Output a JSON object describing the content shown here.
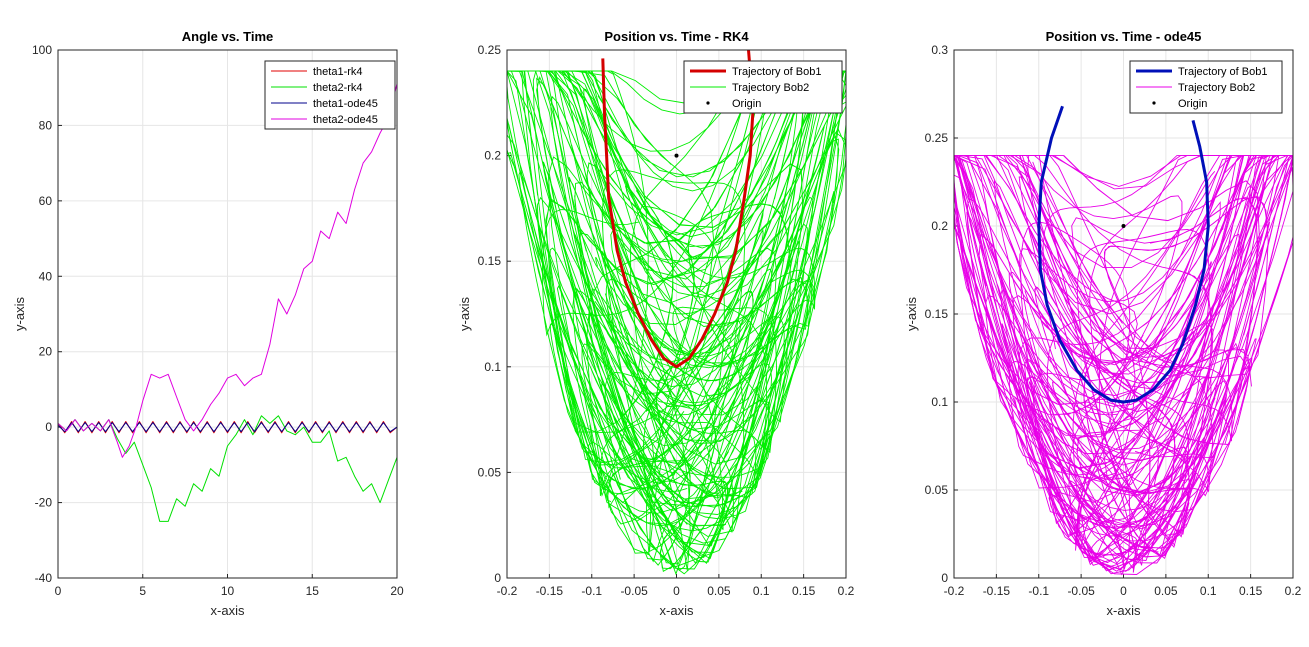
{
  "chart_data": [
    {
      "type": "line",
      "title": "Angle vs. Time",
      "xlabel": "x-axis",
      "ylabel": "y-axis",
      "xlim": [
        0,
        20
      ],
      "ylim": [
        -40,
        100
      ],
      "xticks": [
        "0",
        "5",
        "10",
        "15",
        "20"
      ],
      "yticks": [
        "-40",
        "-20",
        "0",
        "20",
        "40",
        "60",
        "80",
        "100"
      ],
      "grid": true,
      "legend_position": "top-right",
      "series": [
        {
          "name": "theta1-rk4",
          "color": "#e00000",
          "x": [
            0,
            0.4,
            0.8,
            1.2,
            1.6,
            2.0,
            2.4,
            2.8,
            3.2,
            3.6,
            4.0,
            4.4,
            4.8,
            5.2,
            5.6,
            6.0,
            6.4,
            6.8,
            7.2,
            7.6,
            8.0,
            8.4,
            8.8,
            9.2,
            9.6,
            10.0,
            10.4,
            10.8,
            11.2,
            11.6,
            12.0,
            12.4,
            12.8,
            13.2,
            13.6,
            14.0,
            14.4,
            14.8,
            15.2,
            15.6,
            16.0,
            16.4,
            16.8,
            17.2,
            17.6,
            18.0,
            18.4,
            18.8,
            19.2,
            19.6,
            20.0
          ],
          "y": [
            1,
            -1.5,
            1.5,
            -1.5,
            1.5,
            -1.5,
            1.5,
            -1.5,
            1.5,
            -1.5,
            1.5,
            -1.5,
            1.5,
            -1.5,
            1.5,
            -1.5,
            1.5,
            -1.5,
            1.5,
            -1.5,
            1.5,
            -1.5,
            1.5,
            -1.5,
            1.5,
            -1.5,
            1.5,
            -1.5,
            1.5,
            -1.5,
            1.5,
            -1.5,
            1.5,
            -1.5,
            1.5,
            -1.5,
            1.5,
            -1.5,
            1.5,
            -1.5,
            1.5,
            -1.5,
            1.5,
            -1.5,
            1.5,
            -1.5,
            1.5,
            -1.5,
            1.5,
            -1.5,
            0
          ]
        },
        {
          "name": "theta2-rk4",
          "color": "#00e000",
          "x": [
            0,
            0.5,
            1.0,
            1.5,
            2.0,
            2.5,
            3.0,
            3.5,
            4.0,
            4.5,
            5.0,
            5.5,
            6.0,
            6.5,
            7.0,
            7.5,
            8.0,
            8.5,
            9.0,
            9.5,
            10.0,
            10.5,
            11.0,
            11.5,
            12.0,
            12.5,
            13.0,
            13.5,
            14.0,
            14.5,
            15.0,
            15.5,
            16.0,
            16.5,
            17.0,
            17.5,
            18.0,
            18.5,
            19.0,
            19.5,
            20.0
          ],
          "y": [
            1,
            -1,
            2,
            -1,
            1,
            -1,
            2,
            -3,
            -7,
            -4,
            -10,
            -16,
            -25,
            -25,
            -19,
            -21,
            -15,
            -17,
            -11,
            -13,
            -5,
            -2,
            2,
            -2,
            3,
            1,
            3,
            -1,
            -2,
            0,
            -4,
            -4,
            -1,
            -9,
            -8,
            -13,
            -17,
            -15,
            -20,
            -14,
            -8
          ]
        },
        {
          "name": "theta1-ode45",
          "color": "#00008b",
          "x": [
            0,
            0.4,
            0.8,
            1.2,
            1.6,
            2.0,
            2.4,
            2.8,
            3.2,
            3.6,
            4.0,
            4.4,
            4.8,
            5.2,
            5.6,
            6.0,
            6.4,
            6.8,
            7.2,
            7.6,
            8.0,
            8.4,
            8.8,
            9.2,
            9.6,
            10.0,
            10.4,
            10.8,
            11.2,
            11.6,
            12.0,
            12.4,
            12.8,
            13.2,
            13.6,
            14.0,
            14.4,
            14.8,
            15.2,
            15.6,
            16.0,
            16.4,
            16.8,
            17.2,
            17.6,
            18.0,
            18.4,
            18.8,
            19.2,
            19.6,
            20.0
          ],
          "y": [
            0.5,
            -1.2,
            1.2,
            -1.2,
            1.2,
            -1.2,
            1.2,
            -1.2,
            1.2,
            -1.2,
            1.2,
            -1.2,
            1.2,
            -1.2,
            1.2,
            -1.2,
            1.2,
            -1.2,
            1.2,
            -1.2,
            1.2,
            -1.2,
            1.2,
            -1.2,
            1.2,
            -1.2,
            1.2,
            -1.2,
            1.2,
            -1.2,
            1.2,
            -1.2,
            1.2,
            -1.2,
            1.2,
            -1.2,
            1.2,
            -1.2,
            1.2,
            -1.2,
            1.2,
            -1.2,
            1.2,
            -1.2,
            1.2,
            -1.2,
            1.2,
            -1.2,
            1.2,
            -1.2,
            0
          ]
        },
        {
          "name": "theta2-ode45",
          "color": "#e000e0",
          "x": [
            0,
            0.5,
            1.0,
            1.5,
            2.0,
            2.5,
            3.0,
            3.5,
            3.8,
            4.2,
            4.6,
            5.0,
            5.5,
            6.0,
            6.5,
            7.0,
            7.5,
            8.0,
            8.5,
            9.0,
            9.5,
            10.0,
            10.5,
            11.0,
            11.5,
            12.0,
            12.5,
            13.0,
            13.5,
            14.0,
            14.5,
            15.0,
            15.5,
            16.0,
            16.5,
            17.0,
            17.5,
            18.0,
            18.5,
            19.0,
            19.5,
            20.0
          ],
          "y": [
            1,
            -1,
            2,
            -1,
            1,
            -1,
            2,
            -4,
            -8,
            -5,
            0,
            7,
            14,
            13,
            14,
            8,
            2,
            -1,
            2,
            6,
            9,
            13,
            14,
            11,
            13,
            14,
            22,
            34,
            30,
            35,
            42,
            44,
            52,
            50,
            57,
            54,
            63,
            70,
            73,
            78,
            82,
            91
          ]
        }
      ]
    },
    {
      "type": "line",
      "title": "Position vs. Time - RK4",
      "xlabel": "x-axis",
      "ylabel": "y-axis",
      "xlim": [
        -0.2,
        0.2
      ],
      "ylim": [
        0,
        0.25
      ],
      "xticks": [
        "-0.2",
        "-0.15",
        "-0.1",
        "-0.05",
        "0",
        "0.05",
        "0.1",
        "0.15",
        "0.2"
      ],
      "yticks": [
        "0",
        "0.05",
        "0.1",
        "0.15",
        "0.2",
        "0.25"
      ],
      "grid": true,
      "legend_position": "top-right",
      "series": [
        {
          "name": "Trajectory of Bob1",
          "color": "#d40000",
          "x": [
            -0.087,
            -0.085,
            -0.08,
            -0.07,
            -0.06,
            -0.045,
            -0.03,
            -0.015,
            0,
            0.015,
            0.03,
            0.045,
            0.06,
            0.07,
            0.08,
            0.087,
            0.09,
            0.087,
            0.085
          ],
          "y": [
            0.246,
            0.22,
            0.18,
            0.155,
            0.14,
            0.125,
            0.113,
            0.104,
            0.1,
            0.104,
            0.113,
            0.125,
            0.14,
            0.155,
            0.18,
            0.2,
            0.22,
            0.24,
            0.25
          ]
        },
        {
          "name": "Trajectory Bob2",
          "color": "#00ee00",
          "x": [],
          "y": []
        },
        {
          "name": "Origin",
          "color": "#000000",
          "x": [
            0
          ],
          "y": [
            0.2
          ]
        }
      ]
    },
    {
      "type": "line",
      "title": "Position vs. Time - ode45",
      "xlabel": "x-axis",
      "ylabel": "y-axis",
      "xlim": [
        -0.2,
        0.2
      ],
      "ylim": [
        0,
        0.3
      ],
      "xticks": [
        "-0.2",
        "-0.15",
        "-0.1",
        "-0.05",
        "0",
        "0.05",
        "0.1",
        "0.15",
        "0.2"
      ],
      "yticks": [
        "0",
        "0.05",
        "0.1",
        "0.15",
        "0.2",
        "0.25",
        "0.3"
      ],
      "grid": true,
      "legend_position": "top-right",
      "series": [
        {
          "name": "Trajectory of Bob1",
          "color": "#0010b8",
          "x": [
            -0.072,
            -0.085,
            -0.097,
            -0.1,
            -0.098,
            -0.09,
            -0.075,
            -0.055,
            -0.035,
            -0.015,
            0,
            0.015,
            0.035,
            0.055,
            0.07,
            0.085,
            0.095,
            0.1,
            0.098,
            0.09,
            0.082
          ],
          "y": [
            0.268,
            0.25,
            0.225,
            0.2,
            0.175,
            0.155,
            0.135,
            0.118,
            0.107,
            0.101,
            0.1,
            0.101,
            0.107,
            0.118,
            0.133,
            0.155,
            0.175,
            0.2,
            0.225,
            0.245,
            0.26
          ]
        },
        {
          "name": "Trajectory Bob2",
          "color": "#e800e8",
          "x": [],
          "y": []
        },
        {
          "name": "Origin",
          "color": "#000000",
          "x": [
            0
          ],
          "y": [
            0.2
          ]
        }
      ]
    }
  ]
}
